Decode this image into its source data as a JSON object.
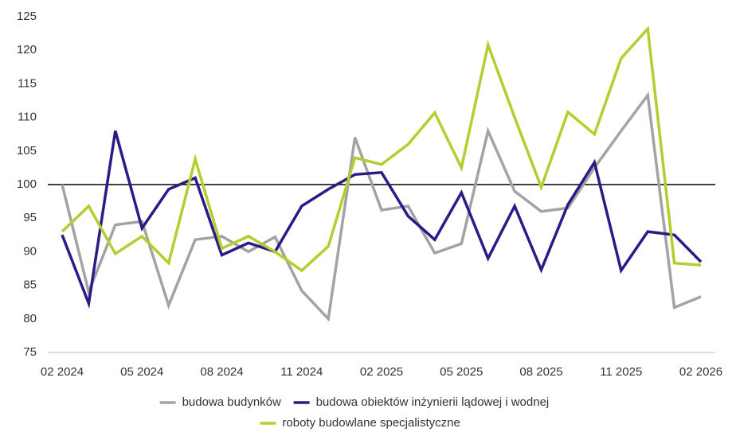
{
  "chart_data": {
    "type": "line",
    "categories": [
      "02 2024",
      null,
      null,
      "05 2024",
      null,
      null,
      "08 2024",
      null,
      null,
      "11 2024",
      null,
      null,
      "02 2025",
      null,
      null,
      "05 2025",
      null,
      null,
      "08 2025",
      null,
      null,
      "11 2025",
      null,
      null,
      "02 2026"
    ],
    "series": [
      {
        "name": "budowa budynków",
        "color": "#a3a3a3",
        "values": [
          100,
          84,
          94,
          94.5,
          82,
          91.8,
          92.3,
          90,
          92.2,
          84.2,
          80,
          107,
          96.2,
          96.8,
          89.8,
          91.2,
          108,
          99,
          96,
          96.5,
          102.5,
          108,
          113.3,
          81.7,
          83.3
        ]
      },
      {
        "name": "budowa obiektów inżynierii lądowej i wodnej",
        "color": "#2e1a87",
        "values": [
          92.5,
          82.3,
          108,
          93.5,
          99.3,
          101,
          89.5,
          91.3,
          90,
          96.8,
          99.3,
          101.5,
          101.8,
          95.3,
          91.8,
          98.8,
          89,
          96.8,
          87.3,
          97,
          103.3,
          87.2,
          93,
          92.5,
          88.5
        ]
      },
      {
        "name": "roboty budowlane specjalistyczne",
        "color": "#b7cd2f",
        "values": [
          93,
          96.8,
          89.7,
          92.3,
          88.3,
          103.8,
          90.5,
          92.3,
          90,
          87.2,
          90.8,
          104,
          103,
          106,
          110.7,
          102.5,
          120.8,
          110,
          99.6,
          110.8,
          107.5,
          118.8,
          123.2,
          88.3,
          88
        ]
      }
    ],
    "ylim": [
      75,
      125
    ],
    "yticks": [
      75,
      80,
      85,
      90,
      95,
      100,
      105,
      110,
      115,
      120,
      125
    ],
    "reference_line": 100,
    "grid": false,
    "legend": "bottom"
  }
}
